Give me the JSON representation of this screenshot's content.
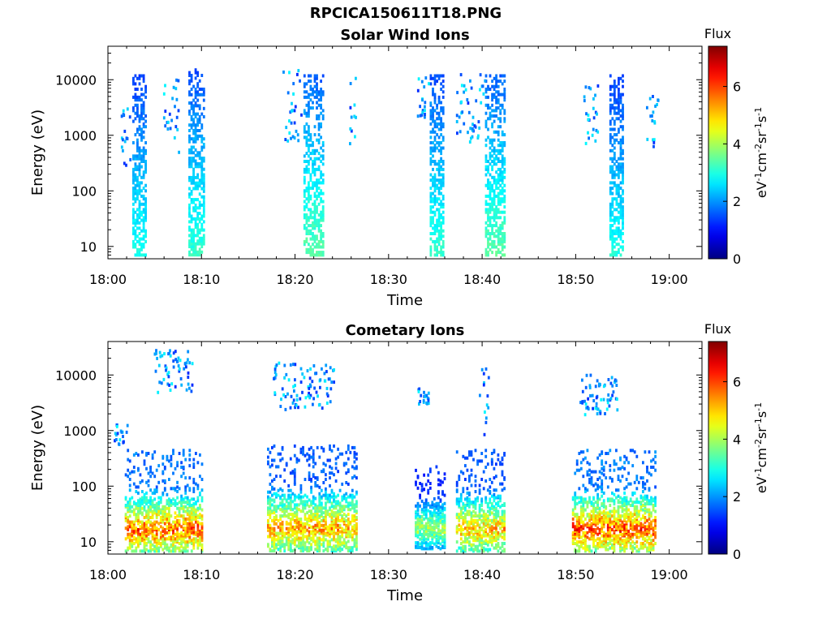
{
  "figure_title": "RPCICA150611T18.PNG",
  "colorbar": {
    "title": "Flux",
    "ylabel_parts": [
      "eV",
      "-1",
      "cm",
      "-2",
      "sr",
      "-1",
      "s",
      "-1"
    ],
    "ticks": [
      "0",
      "2",
      "4",
      "6"
    ],
    "range": [
      0,
      7.4
    ],
    "colormap": "jet"
  },
  "chart_data": [
    {
      "type": "heatmap",
      "title": "Solar Wind Ions",
      "xlabel": "Time",
      "ylabel": "Energy (eV)",
      "x_ticks": [
        "18:00",
        "18:10",
        "18:20",
        "18:30",
        "18:40",
        "18:50",
        "19:00"
      ],
      "x_range_minutes": [
        0,
        63.5
      ],
      "y_ticks": [
        "10",
        "100",
        "1000",
        "10000"
      ],
      "y_scale": "log",
      "y_range": [
        6,
        40000
      ],
      "bursts": [
        {
          "start_min": 2.6,
          "end_min": 4.2,
          "e_min": 6,
          "e_max": 14000,
          "flux_peak": 3.0
        },
        {
          "start_min": 8.6,
          "end_min": 10.4,
          "e_min": 6,
          "e_max": 18000,
          "flux_peak": 3.2
        },
        {
          "start_min": 20.9,
          "end_min": 23.2,
          "e_min": 6,
          "e_max": 14000,
          "flux_peak": 3.5
        },
        {
          "start_min": 34.4,
          "end_min": 36.0,
          "e_min": 6,
          "e_max": 14000,
          "flux_peak": 3.2
        },
        {
          "start_min": 40.3,
          "end_min": 42.6,
          "e_min": 6,
          "e_max": 14000,
          "flux_peak": 3.5
        },
        {
          "start_min": 53.6,
          "end_min": 55.2,
          "e_min": 6,
          "e_max": 14000,
          "flux_peak": 3.0
        }
      ],
      "sparse": [
        {
          "start_min": 1.2,
          "end_min": 2.4,
          "e_min": 300,
          "e_max": 6000
        },
        {
          "start_min": 5.8,
          "end_min": 7.5,
          "e_min": 300,
          "e_max": 12000
        },
        {
          "start_min": 18.6,
          "end_min": 20.6,
          "e_min": 800,
          "e_max": 16000
        },
        {
          "start_min": 25.6,
          "end_min": 26.4,
          "e_min": 500,
          "e_max": 15000
        },
        {
          "start_min": 33.0,
          "end_min": 34.4,
          "e_min": 2000,
          "e_max": 12000
        },
        {
          "start_min": 37.0,
          "end_min": 40.2,
          "e_min": 800,
          "e_max": 14000
        },
        {
          "start_min": 50.6,
          "end_min": 52.4,
          "e_min": 700,
          "e_max": 14000
        },
        {
          "start_min": 57.5,
          "end_min": 58.8,
          "e_min": 400,
          "e_max": 12000
        }
      ]
    },
    {
      "type": "heatmap",
      "title": "Cometary Ions",
      "xlabel": "Time",
      "ylabel": "Energy (eV)",
      "x_ticks": [
        "18:00",
        "18:10",
        "18:20",
        "18:30",
        "18:40",
        "18:50",
        "19:00"
      ],
      "x_range_minutes": [
        0,
        63.5
      ],
      "y_ticks": [
        "10",
        "100",
        "1000",
        "10000"
      ],
      "y_scale": "log",
      "y_range": [
        6,
        40000
      ],
      "bursts": [
        {
          "start_min": 1.8,
          "end_min": 10.2,
          "e_min": 6,
          "e_max": 500,
          "flux_peak": 6.8
        },
        {
          "start_min": 17.0,
          "end_min": 26.6,
          "e_min": 6,
          "e_max": 600,
          "flux_peak": 6.2
        },
        {
          "start_min": 32.8,
          "end_min": 36.0,
          "e_min": 8,
          "e_max": 250,
          "flux_peak": 4.8
        },
        {
          "start_min": 37.2,
          "end_min": 42.4,
          "e_min": 6,
          "e_max": 500,
          "flux_peak": 6.0
        },
        {
          "start_min": 49.6,
          "end_min": 58.6,
          "e_min": 6,
          "e_max": 500,
          "flux_peak": 7.0
        }
      ],
      "sparse": [
        {
          "start_min": 0.6,
          "end_min": 2.0,
          "e_min": 600,
          "e_max": 1500
        },
        {
          "start_min": 4.8,
          "end_min": 9.0,
          "e_min": 5000,
          "e_max": 30000
        },
        {
          "start_min": 17.6,
          "end_min": 24.2,
          "e_min": 2500,
          "e_max": 18000
        },
        {
          "start_min": 33.0,
          "end_min": 34.4,
          "e_min": 3000,
          "e_max": 6000
        },
        {
          "start_min": 39.6,
          "end_min": 40.6,
          "e_min": 800,
          "e_max": 14000
        },
        {
          "start_min": 50.0,
          "end_min": 54.4,
          "e_min": 2000,
          "e_max": 11000
        }
      ]
    }
  ]
}
